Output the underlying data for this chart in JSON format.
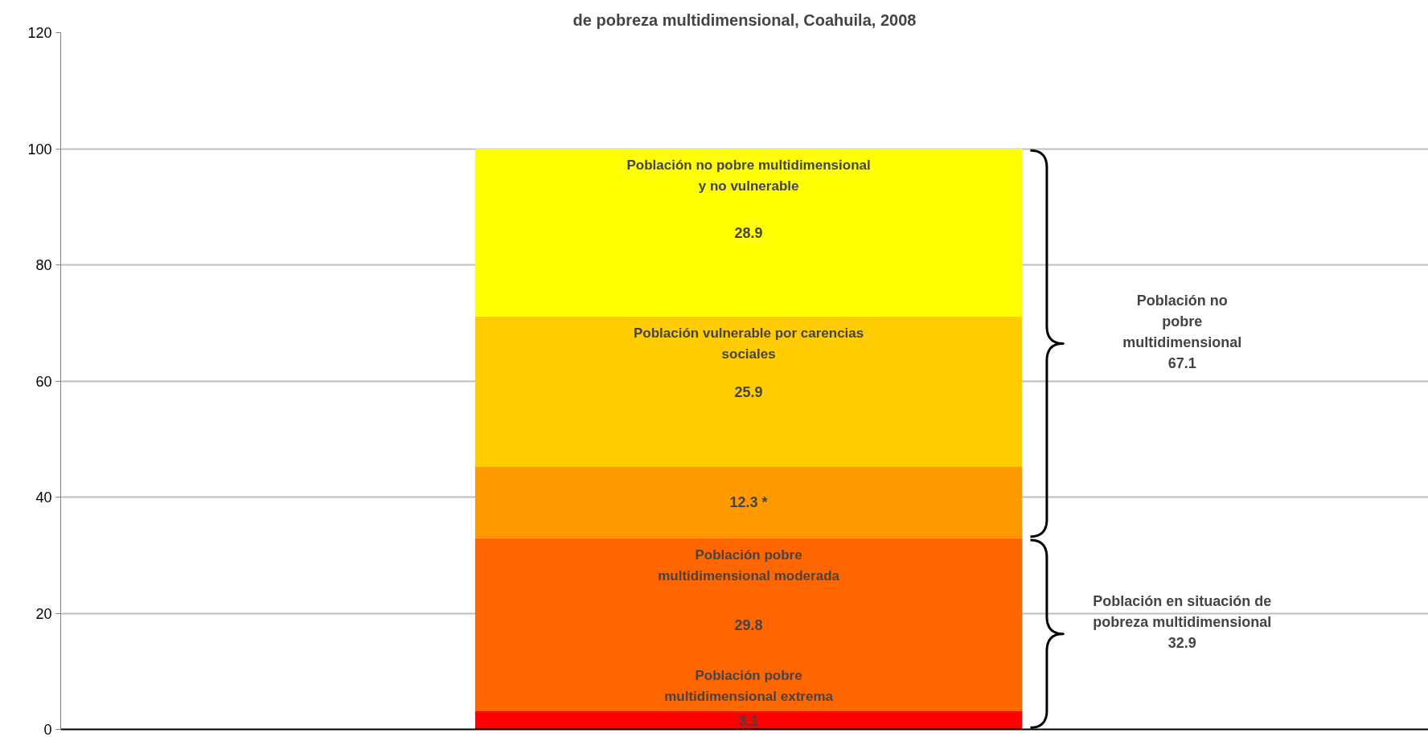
{
  "chart_data": {
    "type": "bar",
    "stacked": true,
    "title": "de pobreza multidimensional, Coahuila, 2008",
    "categories": [
      null
    ],
    "series": [
      {
        "name": "Población pobre\nmultidimensional extrema",
        "color": "#ff0000",
        "values": [
          3.1
        ],
        "value_labels": [
          "3.1"
        ]
      },
      {
        "name": "Población pobre\nmultidimensional moderada",
        "color": "#ff6600",
        "values": [
          29.8
        ],
        "value_labels": [
          "29.8"
        ]
      },
      {
        "color": "#ff9900",
        "values": [
          12.3
        ],
        "value_labels": [
          "12.3 *"
        ]
      },
      {
        "name": "Población vulnerable por carencias\nsociales",
        "color": "#ffcc00",
        "values": [
          25.9
        ],
        "value_labels": [
          "25.9"
        ]
      },
      {
        "name": "Población no pobre multidimensional\ny no vulnerable",
        "color": "#ffff00",
        "values": [
          28.9
        ],
        "value_labels": [
          "28.9"
        ]
      }
    ],
    "annotations": [
      "Población no\npobre\nmultidimensional\n67.1",
      "Población en situación de\npobreza multidimensional\n32.9"
    ],
    "ylim": [
      0,
      120
    ],
    "yticks": [
      0,
      20,
      40,
      60,
      80,
      100,
      120
    ],
    "grid": "y",
    "tick_labels": "y"
  }
}
